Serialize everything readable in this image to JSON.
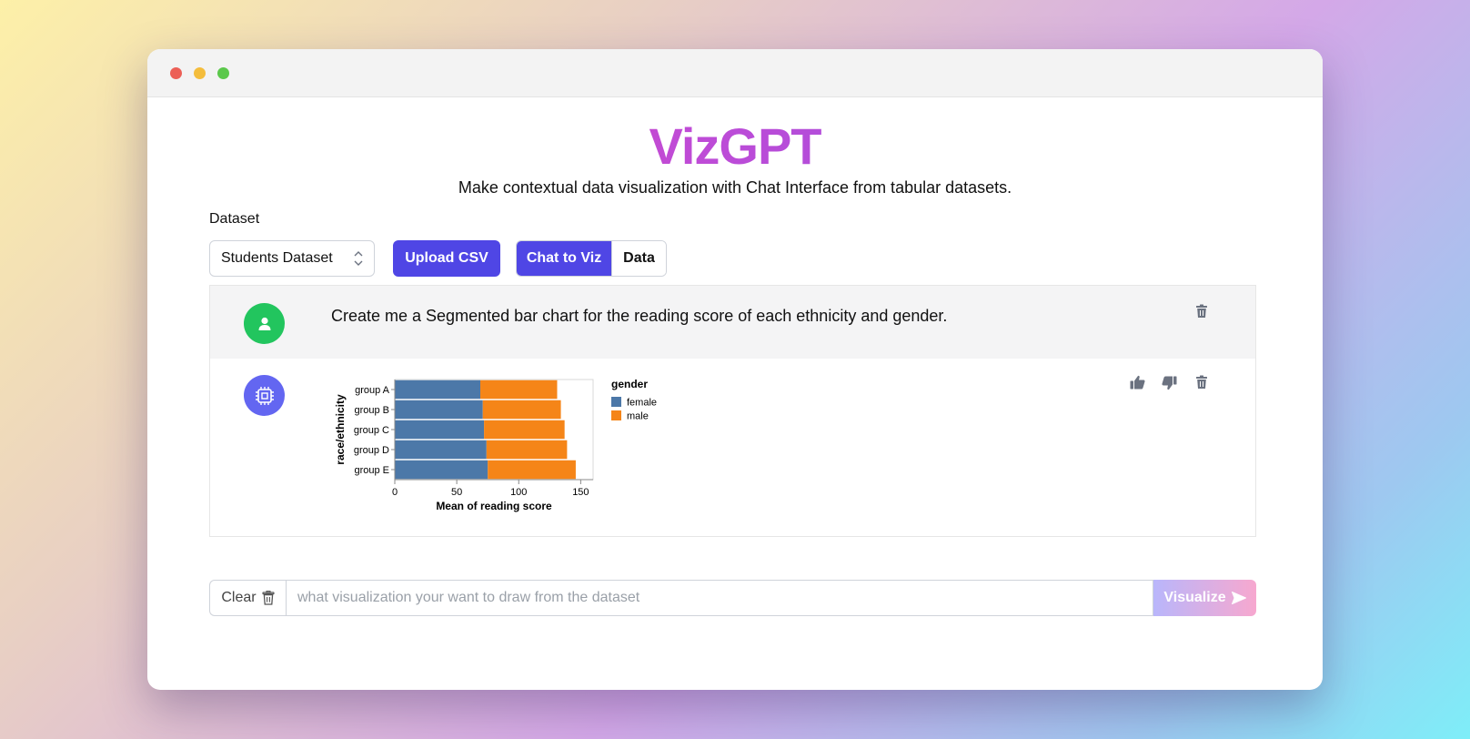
{
  "app": {
    "brand": "VizGPT",
    "subtitle": "Make contextual data visualization with Chat Interface from tabular datasets."
  },
  "dataset": {
    "label": "Dataset",
    "selected": "Students Dataset",
    "upload_label": "Upload CSV"
  },
  "tabs": [
    {
      "label": "Chat to Viz",
      "active": true
    },
    {
      "label": "Data",
      "active": false
    }
  ],
  "messages": {
    "user": {
      "text": "Create me a Segmented bar chart for the reading score of each ethnicity and gender.",
      "avatar_icon": "user-icon",
      "action_icon": "trash-icon"
    },
    "bot": {
      "avatar_icon": "cpu-chip-icon",
      "actions": [
        "thumbs-up-icon",
        "thumbs-down-icon",
        "trash-icon"
      ]
    }
  },
  "chart_data": {
    "type": "bar",
    "orientation": "horizontal",
    "stacked": true,
    "categories": [
      "group A",
      "group B",
      "group C",
      "group D",
      "group E"
    ],
    "series": [
      {
        "name": "female",
        "values": [
          69,
          71,
          72,
          74,
          75
        ],
        "color": "#4c78a8"
      },
      {
        "name": "male",
        "values": [
          62,
          63,
          65,
          65,
          71
        ],
        "color": "#f58518"
      }
    ],
    "xlabel": "Mean of reading score",
    "ylabel": "race/ethnicity",
    "xlim": [
      0,
      160
    ],
    "xticks": [
      0,
      50,
      100,
      150
    ],
    "legend_title": "gender",
    "legend_position": "right",
    "grid": false
  },
  "input": {
    "clear_label": "Clear",
    "placeholder": "what visualization your want to draw from the dataset",
    "value": "",
    "submit_label": "Visualize"
  }
}
